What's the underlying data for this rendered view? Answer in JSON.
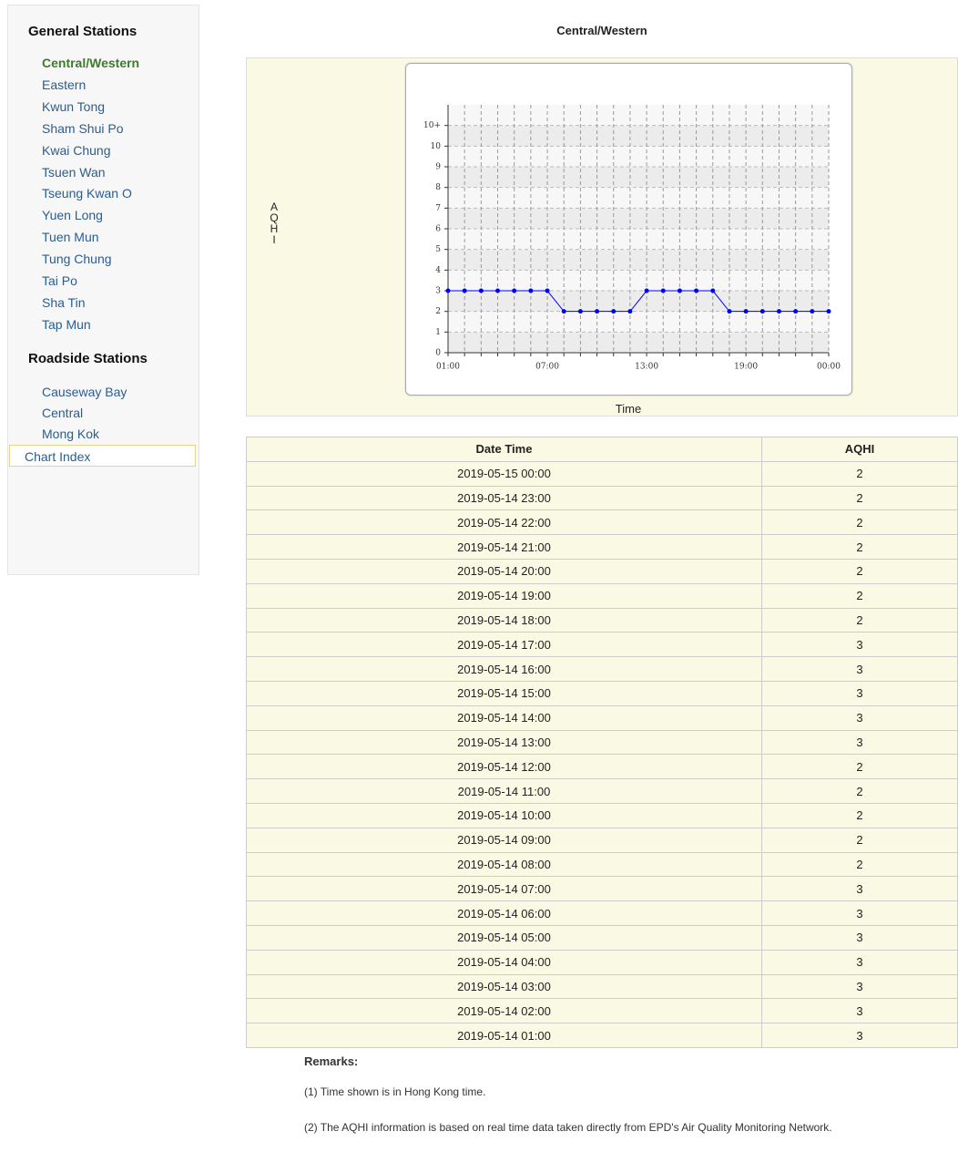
{
  "sidebar": {
    "general_heading": "General Stations",
    "general": [
      "Central/Western",
      "Eastern",
      "Kwun Tong",
      "Sham Shui Po",
      "Kwai Chung",
      "Tsuen Wan",
      "Tseung Kwan O",
      "Yuen Long",
      "Tuen Mun",
      "Tung Chung",
      "Tai Po",
      "Sha Tin",
      "Tap Mun"
    ],
    "roadside_heading": "Roadside Stations",
    "roadside": [
      "Causeway Bay",
      "Central",
      "Mong Kok"
    ],
    "chart_index": "Chart Index"
  },
  "title": "Central/Western",
  "chart_data": {
    "type": "line",
    "ylabel": "AQHI",
    "xlabel": "Time",
    "categories": [
      "01:00",
      null,
      null,
      null,
      null,
      null,
      "07:00",
      null,
      null,
      null,
      null,
      null,
      "13:00",
      null,
      null,
      null,
      null,
      null,
      "19:00",
      null,
      null,
      null,
      null,
      "00:00"
    ],
    "values": [
      3,
      3,
      3,
      3,
      3,
      3,
      3,
      2,
      2,
      2,
      2,
      2,
      3,
      3,
      3,
      3,
      3,
      2,
      2,
      2,
      2,
      2,
      2,
      2
    ],
    "color": "#0000ff",
    "ylim": [
      0,
      12
    ],
    "yticks": [
      0,
      1,
      2,
      3,
      4,
      5,
      6,
      7,
      8,
      9,
      10,
      {
        "value": 11,
        "label": "10+"
      }
    ],
    "grid": true
  },
  "table": {
    "header": [
      "Date Time",
      "AQHI"
    ],
    "rows": [
      [
        "2019-05-15 00:00",
        "2"
      ],
      [
        "2019-05-14 23:00",
        "2"
      ],
      [
        "2019-05-14 22:00",
        "2"
      ],
      [
        "2019-05-14 21:00",
        "2"
      ],
      [
        "2019-05-14 20:00",
        "2"
      ],
      [
        "2019-05-14 19:00",
        "2"
      ],
      [
        "2019-05-14 18:00",
        "2"
      ],
      [
        "2019-05-14 17:00",
        "3"
      ],
      [
        "2019-05-14 16:00",
        "3"
      ],
      [
        "2019-05-14 15:00",
        "3"
      ],
      [
        "2019-05-14 14:00",
        "3"
      ],
      [
        "2019-05-14 13:00",
        "3"
      ],
      [
        "2019-05-14 12:00",
        "2"
      ],
      [
        "2019-05-14 11:00",
        "2"
      ],
      [
        "2019-05-14 10:00",
        "2"
      ],
      [
        "2019-05-14 09:00",
        "2"
      ],
      [
        "2019-05-14 08:00",
        "2"
      ],
      [
        "2019-05-14 07:00",
        "3"
      ],
      [
        "2019-05-14 06:00",
        "3"
      ],
      [
        "2019-05-14 05:00",
        "3"
      ],
      [
        "2019-05-14 04:00",
        "3"
      ],
      [
        "2019-05-14 03:00",
        "3"
      ],
      [
        "2019-05-14 02:00",
        "3"
      ],
      [
        "2019-05-14 01:00",
        "3"
      ]
    ]
  },
  "remarks": {
    "heading": "Remarks:",
    "items": [
      "(1) Time shown is in Hong Kong time.",
      "(2) The AQHI information is based on real time data taken directly from EPD's Air Quality Monitoring Network."
    ]
  }
}
